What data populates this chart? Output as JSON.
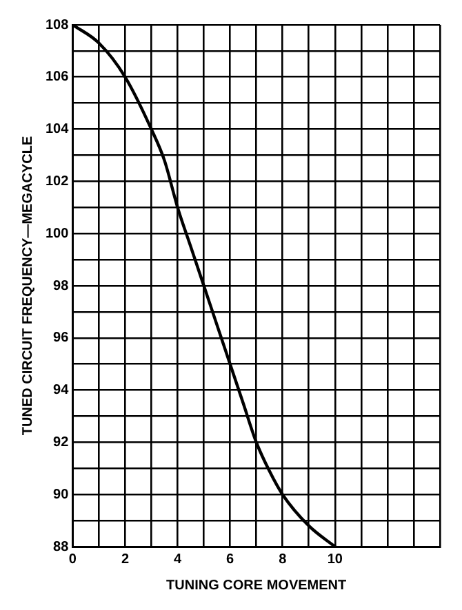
{
  "chart_data": {
    "type": "line",
    "xlabel": "TUNING CORE MOVEMENT",
    "ylabel": "TUNED CIRCUIT FREQUENCY—MEGACYCLE",
    "x": [
      0,
      1,
      2,
      3,
      3.5,
      4,
      4.5,
      5,
      5.5,
      6,
      6.5,
      7,
      7.5,
      8,
      9,
      10
    ],
    "series": [
      {
        "color": "#000000",
        "values": [
          108,
          107.3,
          106,
          104,
          102.8,
          101,
          99.5,
          98,
          96.5,
          95,
          93.5,
          92,
          90.9,
          90,
          88.8,
          88
        ]
      }
    ],
    "xlim": [
      0,
      14
    ],
    "xticks": [
      0,
      {
        "value": 1,
        "label": null
      },
      2,
      {
        "value": 3,
        "label": null
      },
      4,
      {
        "value": 5,
        "label": null
      },
      6,
      {
        "value": 7,
        "label": null
      },
      8,
      {
        "value": 9,
        "label": null
      },
      10,
      {
        "value": 11,
        "label": null
      },
      {
        "value": 12,
        "label": null
      },
      {
        "value": 13,
        "label": null
      },
      {
        "value": 14,
        "label": null
      }
    ],
    "ylim": [
      88,
      108
    ],
    "yticks": [
      88,
      {
        "value": 89,
        "label": null
      },
      90,
      {
        "value": 91,
        "label": null
      },
      92,
      {
        "value": 93,
        "label": null
      },
      94,
      {
        "value": 95,
        "label": null
      },
      96,
      {
        "value": 97,
        "label": null
      },
      98,
      {
        "value": 99,
        "label": null
      },
      100,
      {
        "value": 101,
        "label": null
      },
      102,
      {
        "value": 103,
        "label": null
      },
      104,
      {
        "value": 105,
        "label": null
      },
      106,
      {
        "value": 107,
        "label": null
      },
      108
    ],
    "grid": true,
    "legend": false,
    "marker": "none",
    "line_style": "solid"
  }
}
